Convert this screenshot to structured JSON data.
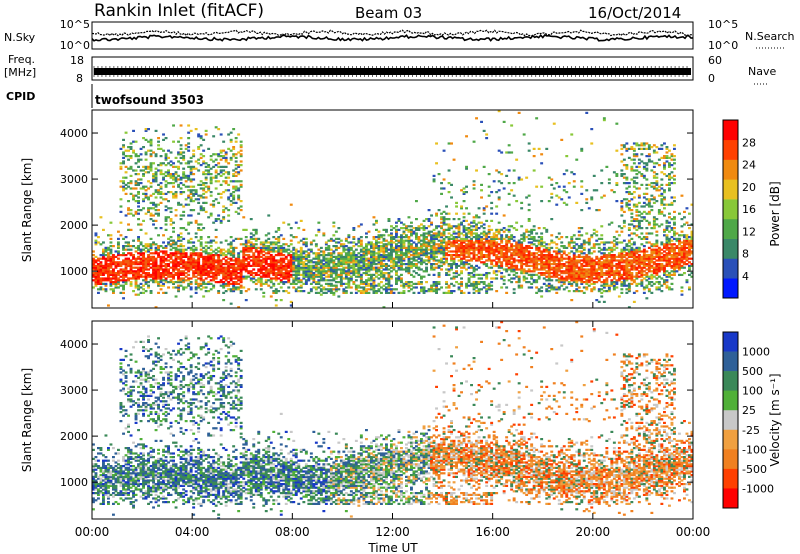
{
  "header": {
    "station": "Rankin Inlet (fitACF)",
    "beam": "Beam 03",
    "date": "16/Oct/2014"
  },
  "strip_panels": {
    "nsky": {
      "label": "N.Sky",
      "ticks": [
        "10^5",
        "10^0"
      ]
    },
    "nsearch": {
      "label": "N.Search",
      "ticks": [
        "10^5",
        "10^0"
      ]
    },
    "freq": {
      "label_line1": "Freq.",
      "label_line2": "[MHz]",
      "ticks": [
        "18",
        "8"
      ]
    },
    "nave": {
      "label": "Nave",
      "ticks": [
        "60",
        "0"
      ]
    },
    "cpid": {
      "label": "CPID",
      "value": "twofsound 3503"
    }
  },
  "chart_data": [
    {
      "type": "heatmap",
      "name": "power",
      "ylabel": "Slant Range [km]",
      "xlabel": "",
      "yticks": [
        "1000",
        "2000",
        "3000",
        "4000"
      ],
      "ylim": [
        200,
        4500
      ],
      "xlim": [
        0,
        24
      ],
      "colorbar": {
        "label": "Power [dB]",
        "ticks": [
          "4",
          "8",
          "12",
          "16",
          "20",
          "24",
          "28"
        ],
        "colors": [
          "#0018ff",
          "#2a50b8",
          "#3a8868",
          "#4fa848",
          "#88c838",
          "#e8c020",
          "#f08a10",
          "#ff4000",
          "#ff0000"
        ]
      }
    },
    {
      "type": "heatmap",
      "name": "velocity",
      "ylabel": "Slant Range [km]",
      "xlabel": "Time UT",
      "xticks": [
        "00:00",
        "04:00",
        "08:00",
        "12:00",
        "16:00",
        "20:00",
        "00:00"
      ],
      "yticks": [
        "1000",
        "2000",
        "3000",
        "4000"
      ],
      "ylim": [
        200,
        4500
      ],
      "xlim": [
        0,
        24
      ],
      "colorbar": {
        "label": "Velocity [m s⁻¹]",
        "ticks": [
          "1000",
          "500",
          "100",
          "25",
          "-25",
          "-100",
          "-500",
          "-1000"
        ],
        "colors": [
          "#1838c8",
          "#2f6098",
          "#3a8858",
          "#50b038",
          "#c8c8c8",
          "#f0a040",
          "#f08020",
          "#ff4000",
          "#ff0000"
        ]
      }
    }
  ]
}
